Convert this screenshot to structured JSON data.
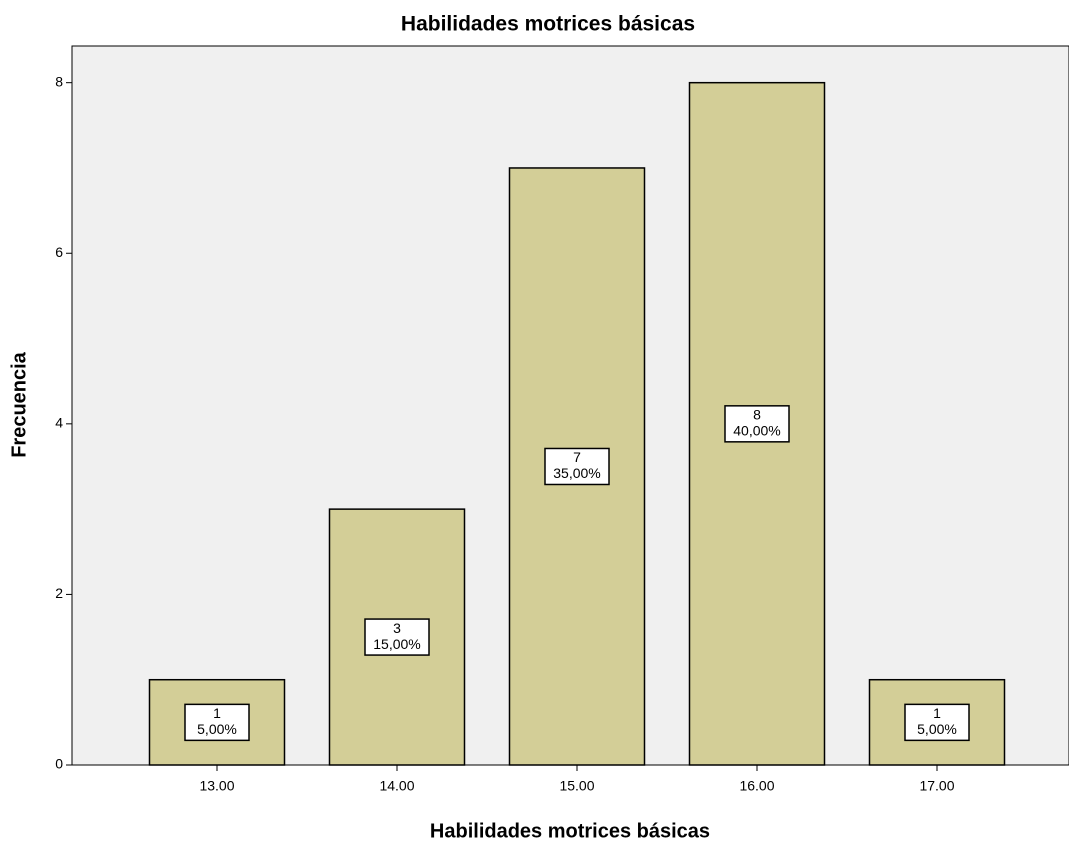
{
  "chart_data": {
    "type": "bar",
    "title": "Habilidades motrices básicas",
    "x_label": "Habilidades motrices básicas",
    "y_label": "Frecuencia",
    "categories": [
      "13.00",
      "14.00",
      "15.00",
      "16.00",
      "17.00"
    ],
    "values": [
      1,
      3,
      7,
      8,
      1
    ],
    "percents": [
      5,
      15,
      35,
      40,
      5
    ],
    "percent_labels": [
      "5,00%",
      "15,00%",
      "35,00%",
      "40,00%",
      "5,00%"
    ],
    "color": "#d3ce97",
    "ylim": [
      0,
      8.43
    ],
    "yticks": [
      0,
      2,
      4,
      6,
      8
    ],
    "grid": false
  }
}
